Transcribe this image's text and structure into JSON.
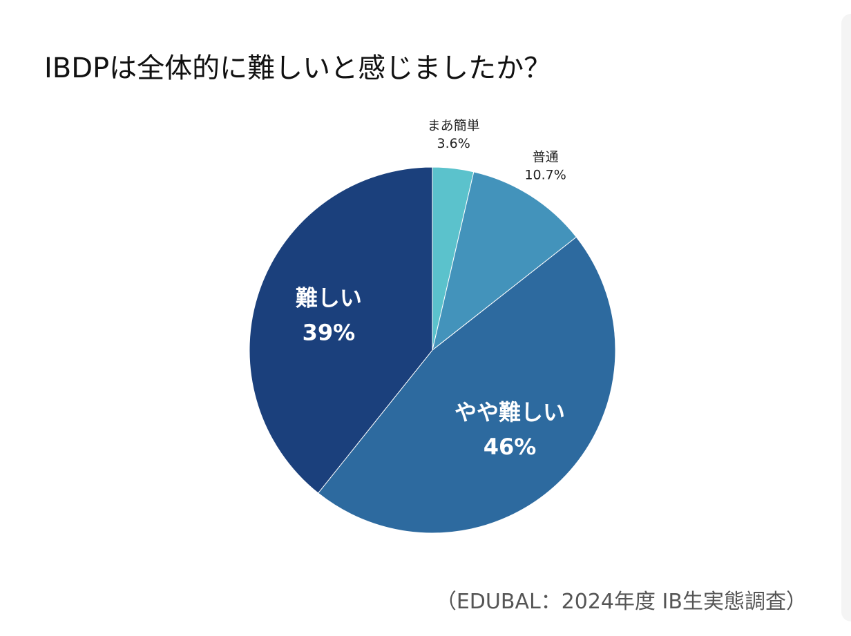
{
  "title": "IBDPは全体的に難しいと感じましたか？",
  "source": "（EDUBAL：2024年度 IB生実態調査）",
  "chart_data": {
    "type": "pie",
    "title": "IBDPは全体的に難しいと感じましたか？",
    "start_angle_deg": 0,
    "direction": "clockwise",
    "slices": [
      {
        "label": "まあ簡単",
        "value": 3.6,
        "display": "3.6%",
        "color": "#5bc2cc",
        "label_position": "outside"
      },
      {
        "label": "普通",
        "value": 10.7,
        "display": "10.7%",
        "color": "#4393bb",
        "label_position": "outside"
      },
      {
        "label": "やや難しい",
        "value": 46,
        "display": "46%",
        "color": "#2d6a9f",
        "label_position": "inside"
      },
      {
        "label": "難しい",
        "value": 39,
        "display": "39%",
        "color": "#1b407c",
        "label_position": "inside"
      }
    ]
  }
}
